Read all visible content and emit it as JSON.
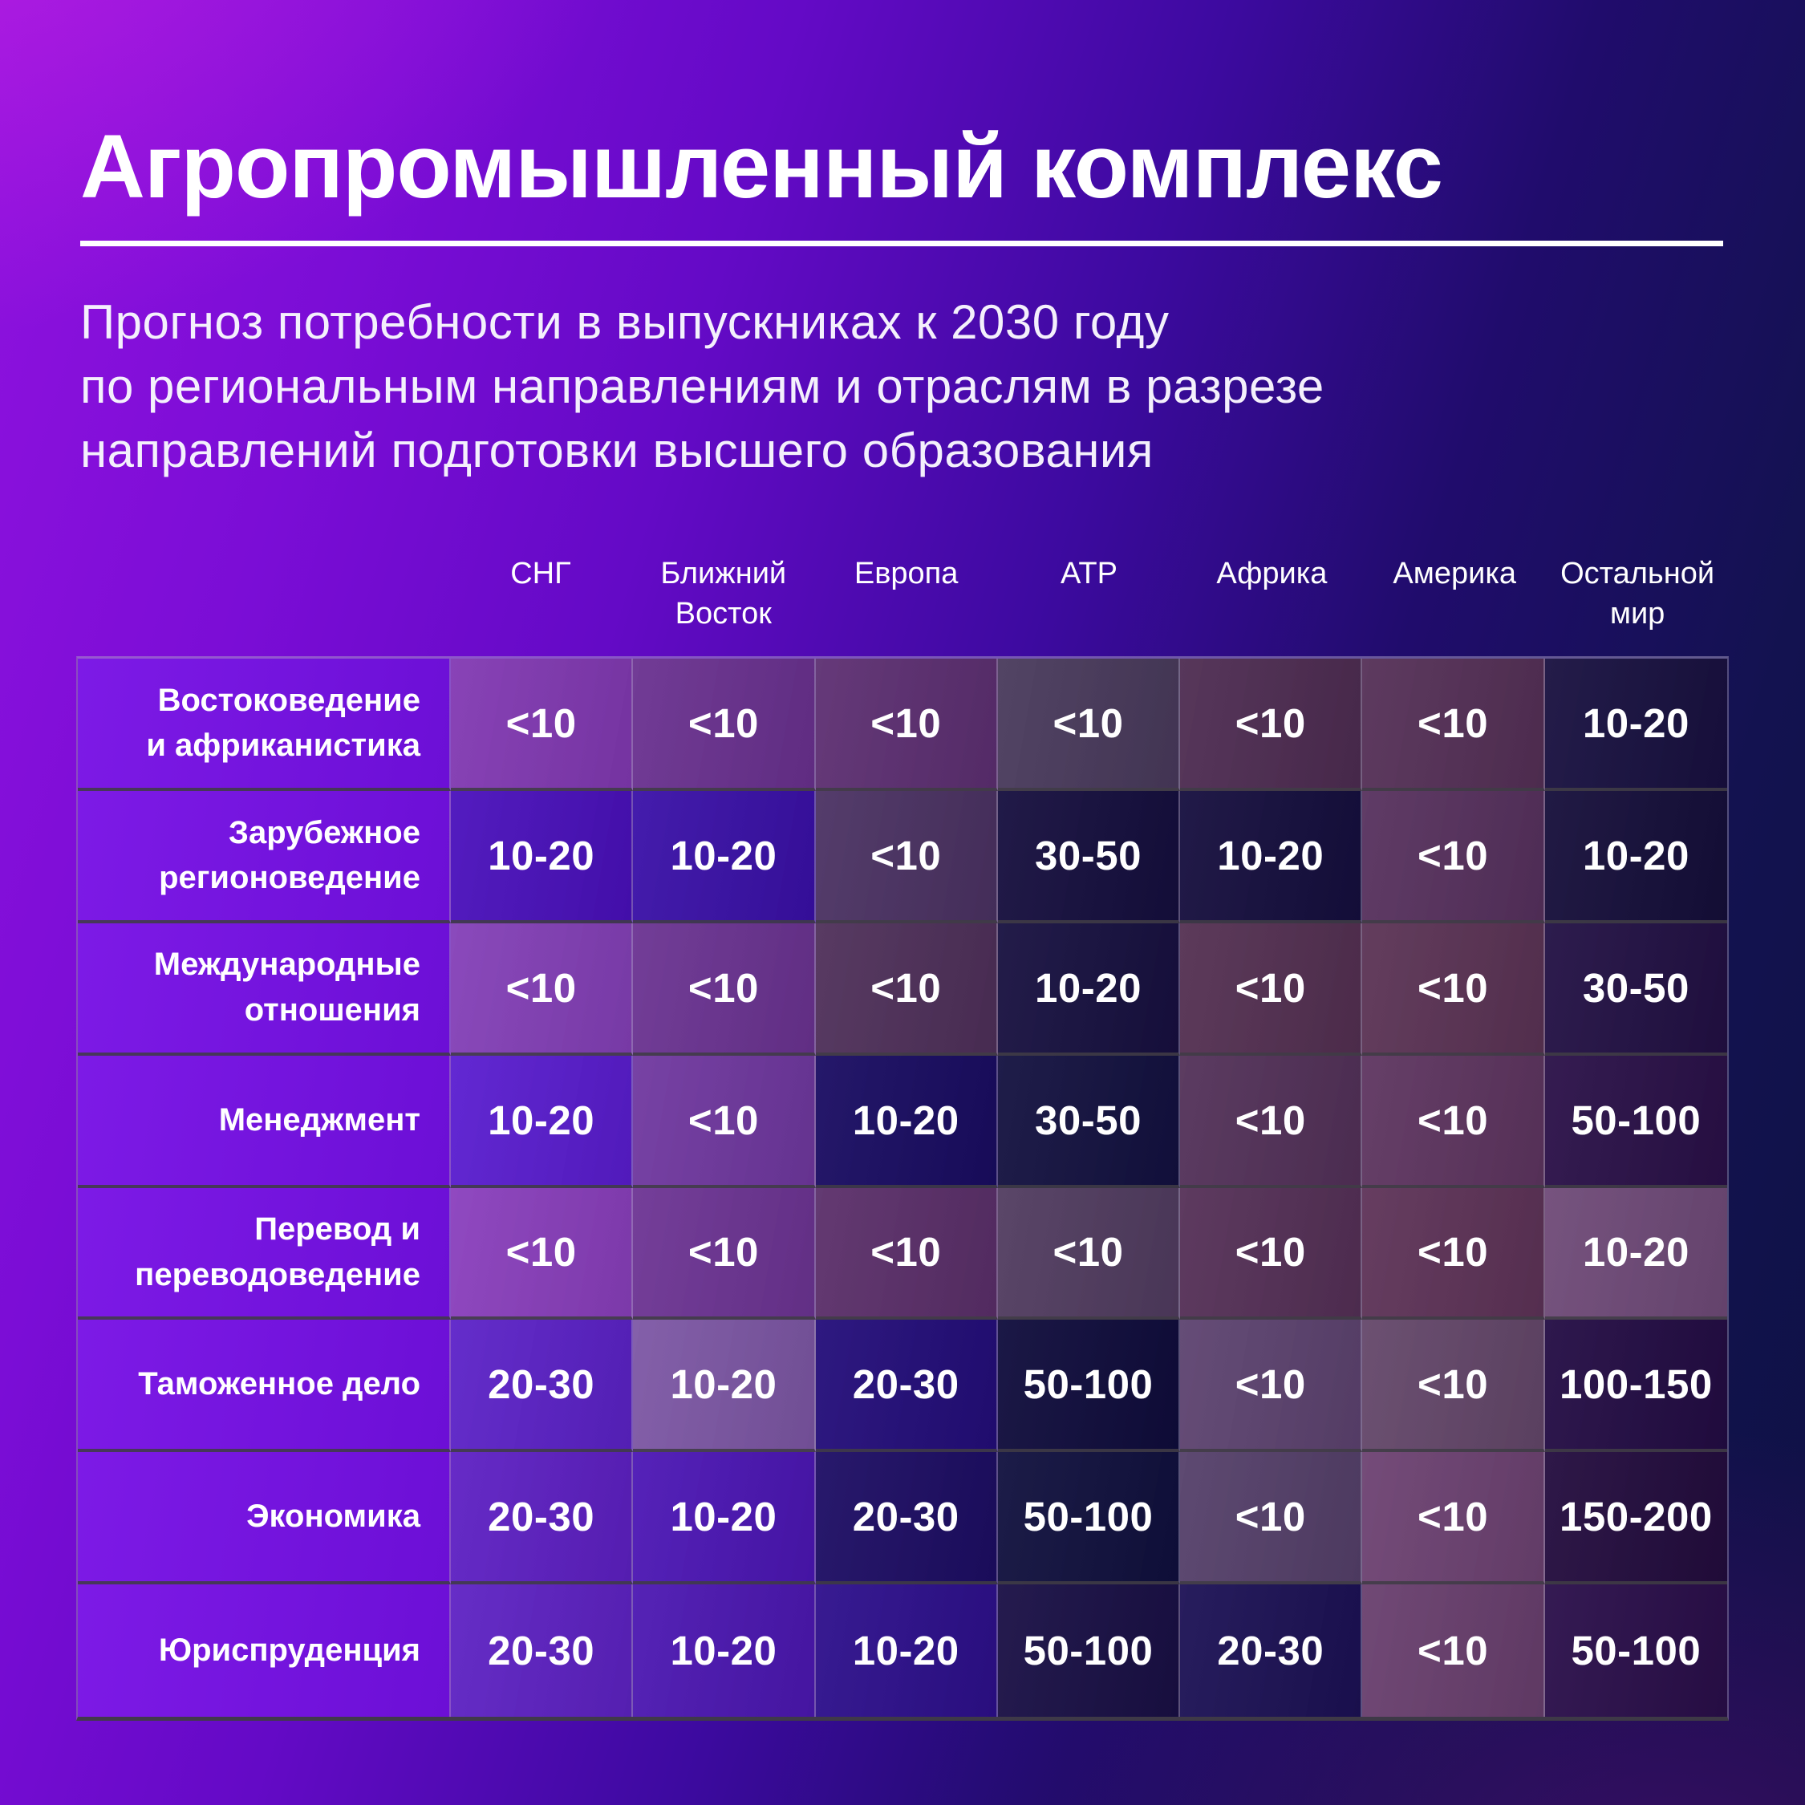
{
  "page": {
    "title": "Агропромышленный комплекс",
    "subtitle_lines": [
      "Прогноз потребности в выпускниках к 2030 году",
      "по региональным направлениям и отраслям в разрезе",
      "направлений подготовки высшего образования"
    ]
  },
  "palette": {
    "background_top_left": "#d828e4",
    "background_left": "#7b0dd6",
    "background_right": "#0e1144",
    "label_column": "#7113dc",
    "text": "#ffffff",
    "row_divider": "#403c46",
    "column_divider": "#948aa8",
    "title_divider": "#ffffff"
  },
  "chart_data": {
    "type": "heatmap",
    "title": "Агропромышленный комплекс",
    "subtitle": "Прогноз потребности в выпускниках к 2030 году по региональным направлениям и отраслям в разрезе направлений подготовки высшего образования",
    "legend": "нет (цвет ячейки кодирует диапазон потребности)",
    "columns": [
      "СНГ",
      "Ближний\nВосток",
      "Европа",
      "АТР",
      "Африка",
      "Америка",
      "Остальной\nмир"
    ],
    "rows": [
      {
        "label": "Востоковедение\nи африканистика",
        "cells": [
          {
            "value": "<10",
            "color": "#8239b3"
          },
          {
            "value": "<10",
            "color": "#6a3190"
          },
          {
            "value": "<10",
            "color": "#5d2f72"
          },
          {
            "value": "<10",
            "color": "#493a5c"
          },
          {
            "value": "<10",
            "color": "#4e2c52"
          },
          {
            "value": "<10",
            "color": "#553057"
          },
          {
            "value": "10-20",
            "color": "#181040"
          }
        ]
      },
      {
        "label": "Зарубежное\nрегионоведение",
        "cells": [
          {
            "value": "10-20",
            "color": "#4a10bc"
          },
          {
            "value": "10-20",
            "color": "#3a10a8"
          },
          {
            "value": "<10",
            "color": "#4b3263"
          },
          {
            "value": "30-50",
            "color": "#150e3e"
          },
          {
            "value": "10-20",
            "color": "#150e3e"
          },
          {
            "value": "<10",
            "color": "#57315e"
          },
          {
            "value": "10-20",
            "color": "#150e3a"
          }
        ]
      },
      {
        "label": "Международные\nотношения",
        "cells": [
          {
            "value": "<10",
            "color": "#8440b8"
          },
          {
            "value": "<10",
            "color": "#6b3392"
          },
          {
            "value": "<10",
            "color": "#4f305a"
          },
          {
            "value": "10-20",
            "color": "#171040"
          },
          {
            "value": "<10",
            "color": "#543052"
          },
          {
            "value": "<10",
            "color": "#5b3355"
          },
          {
            "value": "30-50",
            "color": "#221044"
          }
        ]
      },
      {
        "label": "Менеджмент",
        "cells": [
          {
            "value": "10-20",
            "color": "#5a1dd0"
          },
          {
            "value": "<10",
            "color": "#7038a0"
          },
          {
            "value": "10-20",
            "color": "#190c62"
          },
          {
            "value": "30-50",
            "color": "#131140"
          },
          {
            "value": "<10",
            "color": "#533159"
          },
          {
            "value": "<10",
            "color": "#5e3560"
          },
          {
            "value": "50-100",
            "color": "#2a1048"
          }
        ]
      },
      {
        "label": "Перевод и\nпереводоведение",
        "cells": [
          {
            "value": "<10",
            "color": "#8a3fbd"
          },
          {
            "value": "<10",
            "color": "#6d3494"
          },
          {
            "value": "<10",
            "color": "#5b2f6a"
          },
          {
            "value": "<10",
            "color": "#513c60"
          },
          {
            "value": "<10",
            "color": "#553057"
          },
          {
            "value": "<10",
            "color": "#5e3358"
          },
          {
            "value": "10-20",
            "color": "#6f4a78"
          }
        ]
      },
      {
        "label": "Таможенное дело",
        "cells": [
          {
            "value": "20-30",
            "color": "#5c22c8"
          },
          {
            "value": "10-20",
            "color": "#7d57a5"
          },
          {
            "value": "20-30",
            "color": "#230d7a"
          },
          {
            "value": "50-100",
            "color": "#0f0c3c"
          },
          {
            "value": "<10",
            "color": "#5d4370"
          },
          {
            "value": "<10",
            "color": "#64476a"
          },
          {
            "value": "100-150",
            "color": "#230c44"
          }
        ]
      },
      {
        "label": "Экономика",
        "cells": [
          {
            "value": "20-30",
            "color": "#5e20c4"
          },
          {
            "value": "10-20",
            "color": "#4c16b5"
          },
          {
            "value": "20-30",
            "color": "#1d0d64"
          },
          {
            "value": "50-100",
            "color": "#10103e"
          },
          {
            "value": "<10",
            "color": "#55406a"
          },
          {
            "value": "<10",
            "color": "#6d4272"
          },
          {
            "value": "150-200",
            "color": "#230c3e"
          }
        ]
      },
      {
        "label": "Юриспруденция",
        "cells": [
          {
            "value": "20-30",
            "color": "#5e22c4"
          },
          {
            "value": "10-20",
            "color": "#4c17b2"
          },
          {
            "value": "10-20",
            "color": "#2d0f8c"
          },
          {
            "value": "50-100",
            "color": "#190f45"
          },
          {
            "value": "20-30",
            "color": "#1c1155"
          },
          {
            "value": "<10",
            "color": "#693f6e"
          },
          {
            "value": "50-100",
            "color": "#2a0e4a"
          }
        ]
      }
    ]
  }
}
